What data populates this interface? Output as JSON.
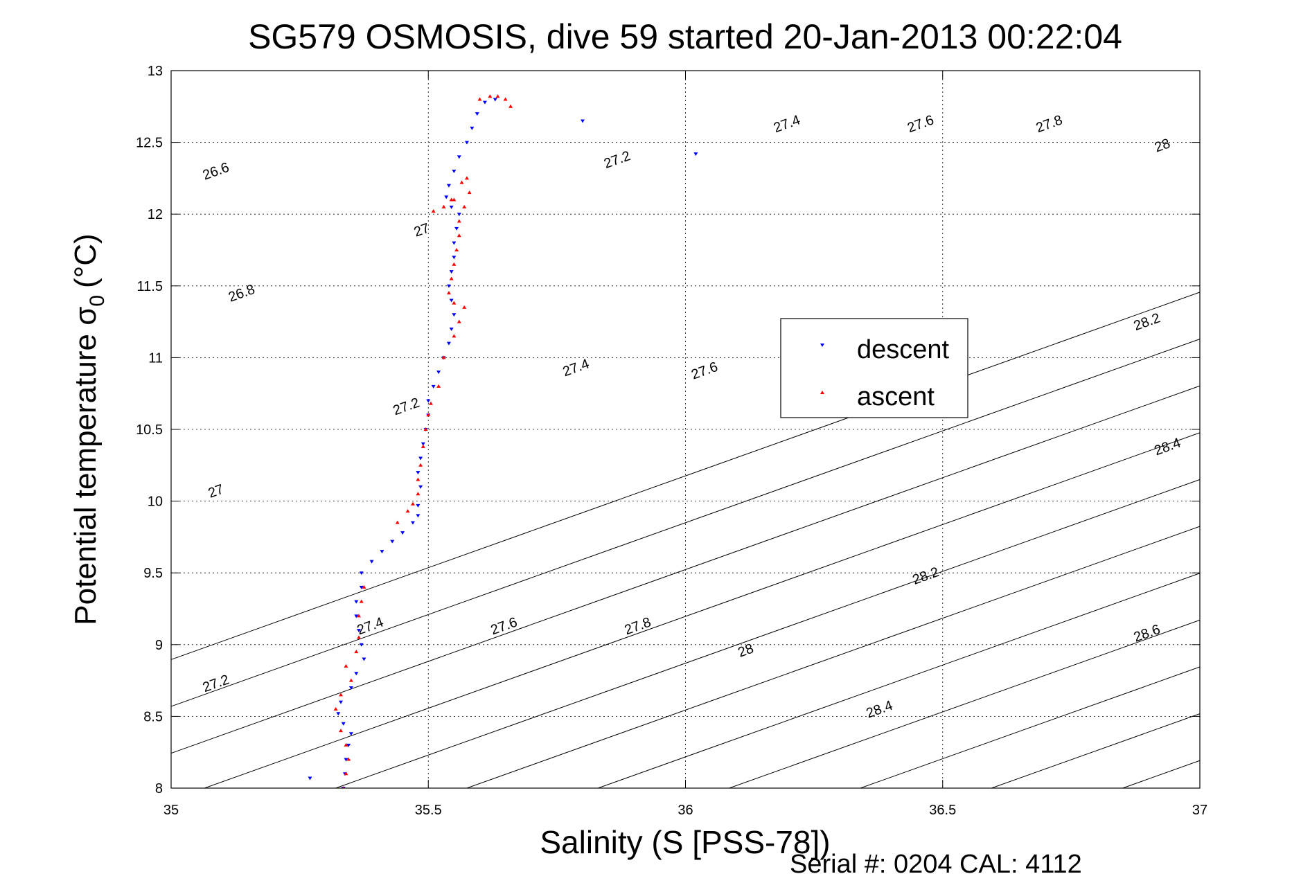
{
  "chart_data": {
    "type": "scatter",
    "title": "SG579 OSMOSIS, dive 59 started 20-Jan-2013 00:22:04",
    "xlabel": "Salinity (S [PSS-78])",
    "ylabel_main": "Potential temperature σ",
    "ylabel_sub": "0",
    "ylabel_unit": "(°C)",
    "footer": "Serial #: 0204  CAL: 4112",
    "xlim": [
      35,
      37
    ],
    "ylim": [
      8,
      13
    ],
    "xticks": [
      "35",
      "35.5",
      "36",
      "36.5",
      "37"
    ],
    "yticks": [
      "8",
      "8.5",
      "9",
      "9.5",
      "10",
      "10.5",
      "11",
      "11.5",
      "12",
      "12.5",
      "13"
    ],
    "grid": true,
    "legend_position": "center-right",
    "contour_labels": [
      {
        "text": "26.6",
        "x": 35.09,
        "y": 12.27
      },
      {
        "text": "26.8",
        "x": 35.14,
        "y": 11.42
      },
      {
        "text": "27",
        "x": 35.09,
        "y": 10.04
      },
      {
        "text": "27",
        "x": 35.49,
        "y": 11.86
      },
      {
        "text": "27.2",
        "x": 35.09,
        "y": 8.7
      },
      {
        "text": "27.2",
        "x": 35.46,
        "y": 10.63
      },
      {
        "text": "27.2",
        "x": 35.87,
        "y": 12.35
      },
      {
        "text": "27.4",
        "x": 35.39,
        "y": 9.1
      },
      {
        "text": "27.4",
        "x": 35.79,
        "y": 10.9
      },
      {
        "text": "27.4",
        "x": 36.2,
        "y": 12.6
      },
      {
        "text": "27.6",
        "x": 35.65,
        "y": 9.1
      },
      {
        "text": "27.6",
        "x": 36.04,
        "y": 10.88
      },
      {
        "text": "27.6",
        "x": 36.46,
        "y": 12.6
      },
      {
        "text": "27.8",
        "x": 35.91,
        "y": 9.1
      },
      {
        "text": "27.8",
        "x": 36.71,
        "y": 12.6
      },
      {
        "text": "28",
        "x": 36.12,
        "y": 8.93
      },
      {
        "text": "28",
        "x": 36.93,
        "y": 12.45
      },
      {
        "text": "28.2",
        "x": 36.47,
        "y": 9.45
      },
      {
        "text": "28.2",
        "x": 36.9,
        "y": 11.22
      },
      {
        "text": "28.4",
        "x": 36.38,
        "y": 8.52
      },
      {
        "text": "28.4",
        "x": 36.94,
        "y": 10.35
      },
      {
        "text": "28.6",
        "x": 36.9,
        "y": 9.05
      }
    ],
    "series": [
      {
        "name": "descent",
        "color": "#0000ff",
        "marker": "triangle-down",
        "points": [
          [
            35.335,
            8.0
          ],
          [
            35.338,
            8.1
          ],
          [
            35.34,
            8.2
          ],
          [
            35.345,
            8.3
          ],
          [
            35.35,
            8.38
          ],
          [
            35.335,
            8.45
          ],
          [
            35.325,
            8.52
          ],
          [
            35.33,
            8.6
          ],
          [
            35.35,
            8.7
          ],
          [
            35.36,
            8.8
          ],
          [
            35.375,
            8.9
          ],
          [
            35.37,
            9.0
          ],
          [
            35.365,
            9.1
          ],
          [
            35.36,
            9.2
          ],
          [
            35.36,
            9.3
          ],
          [
            35.37,
            9.4
          ],
          [
            35.37,
            9.5
          ],
          [
            35.39,
            9.58
          ],
          [
            35.41,
            9.65
          ],
          [
            35.43,
            9.72
          ],
          [
            35.45,
            9.78
          ],
          [
            35.47,
            9.85
          ],
          [
            35.48,
            9.9
          ],
          [
            35.48,
            9.97
          ],
          [
            35.485,
            10.1
          ],
          [
            35.48,
            10.2
          ],
          [
            35.485,
            10.3
          ],
          [
            35.49,
            10.4
          ],
          [
            35.495,
            10.5
          ],
          [
            35.5,
            10.6
          ],
          [
            35.5,
            10.7
          ],
          [
            35.51,
            10.8
          ],
          [
            35.52,
            10.9
          ],
          [
            35.53,
            11.0
          ],
          [
            35.54,
            11.1
          ],
          [
            35.545,
            11.2
          ],
          [
            35.55,
            11.3
          ],
          [
            35.545,
            11.4
          ],
          [
            35.54,
            11.5
          ],
          [
            35.545,
            11.6
          ],
          [
            35.55,
            11.7
          ],
          [
            35.55,
            11.8
          ],
          [
            35.555,
            11.9
          ],
          [
            35.56,
            12.0
          ],
          [
            35.545,
            12.05
          ],
          [
            35.535,
            12.12
          ],
          [
            35.54,
            12.2
          ],
          [
            35.55,
            12.3
          ],
          [
            35.56,
            12.4
          ],
          [
            35.575,
            12.5
          ],
          [
            35.585,
            12.6
          ],
          [
            35.595,
            12.7
          ],
          [
            35.63,
            12.8
          ],
          [
            35.61,
            12.78
          ],
          [
            35.8,
            12.65
          ],
          [
            36.02,
            12.42
          ],
          [
            35.27,
            8.07
          ]
        ]
      },
      {
        "name": "ascent",
        "color": "#ff0000",
        "marker": "triangle-up",
        "points": [
          [
            35.335,
            8.0
          ],
          [
            35.34,
            8.1
          ],
          [
            35.345,
            8.2
          ],
          [
            35.34,
            8.3
          ],
          [
            35.33,
            8.4
          ],
          [
            35.32,
            8.55
          ],
          [
            35.33,
            8.65
          ],
          [
            35.35,
            8.75
          ],
          [
            35.34,
            8.85
          ],
          [
            35.36,
            8.95
          ],
          [
            35.365,
            9.05
          ],
          [
            35.365,
            9.2
          ],
          [
            35.37,
            9.3
          ],
          [
            35.375,
            9.4
          ],
          [
            35.44,
            9.85
          ],
          [
            35.46,
            9.93
          ],
          [
            35.47,
            9.98
          ],
          [
            35.48,
            10.05
          ],
          [
            35.48,
            10.15
          ],
          [
            35.485,
            10.25
          ],
          [
            35.49,
            10.38
          ],
          [
            35.495,
            10.5
          ],
          [
            35.5,
            10.6
          ],
          [
            35.505,
            10.68
          ],
          [
            35.52,
            10.8
          ],
          [
            35.53,
            11.0
          ],
          [
            35.55,
            11.15
          ],
          [
            35.56,
            11.25
          ],
          [
            35.57,
            11.35
          ],
          [
            35.55,
            11.38
          ],
          [
            35.54,
            11.45
          ],
          [
            35.545,
            11.55
          ],
          [
            35.55,
            11.65
          ],
          [
            35.555,
            11.75
          ],
          [
            35.56,
            11.85
          ],
          [
            35.56,
            11.95
          ],
          [
            35.57,
            12.05
          ],
          [
            35.58,
            12.15
          ],
          [
            35.565,
            12.22
          ],
          [
            35.55,
            12.1
          ],
          [
            35.53,
            12.05
          ],
          [
            35.51,
            12.02
          ],
          [
            35.545,
            12.1
          ],
          [
            35.575,
            12.25
          ],
          [
            35.6,
            12.8
          ],
          [
            35.62,
            12.82
          ],
          [
            35.635,
            12.82
          ],
          [
            35.65,
            12.8
          ],
          [
            35.66,
            12.75
          ]
        ]
      }
    ]
  }
}
